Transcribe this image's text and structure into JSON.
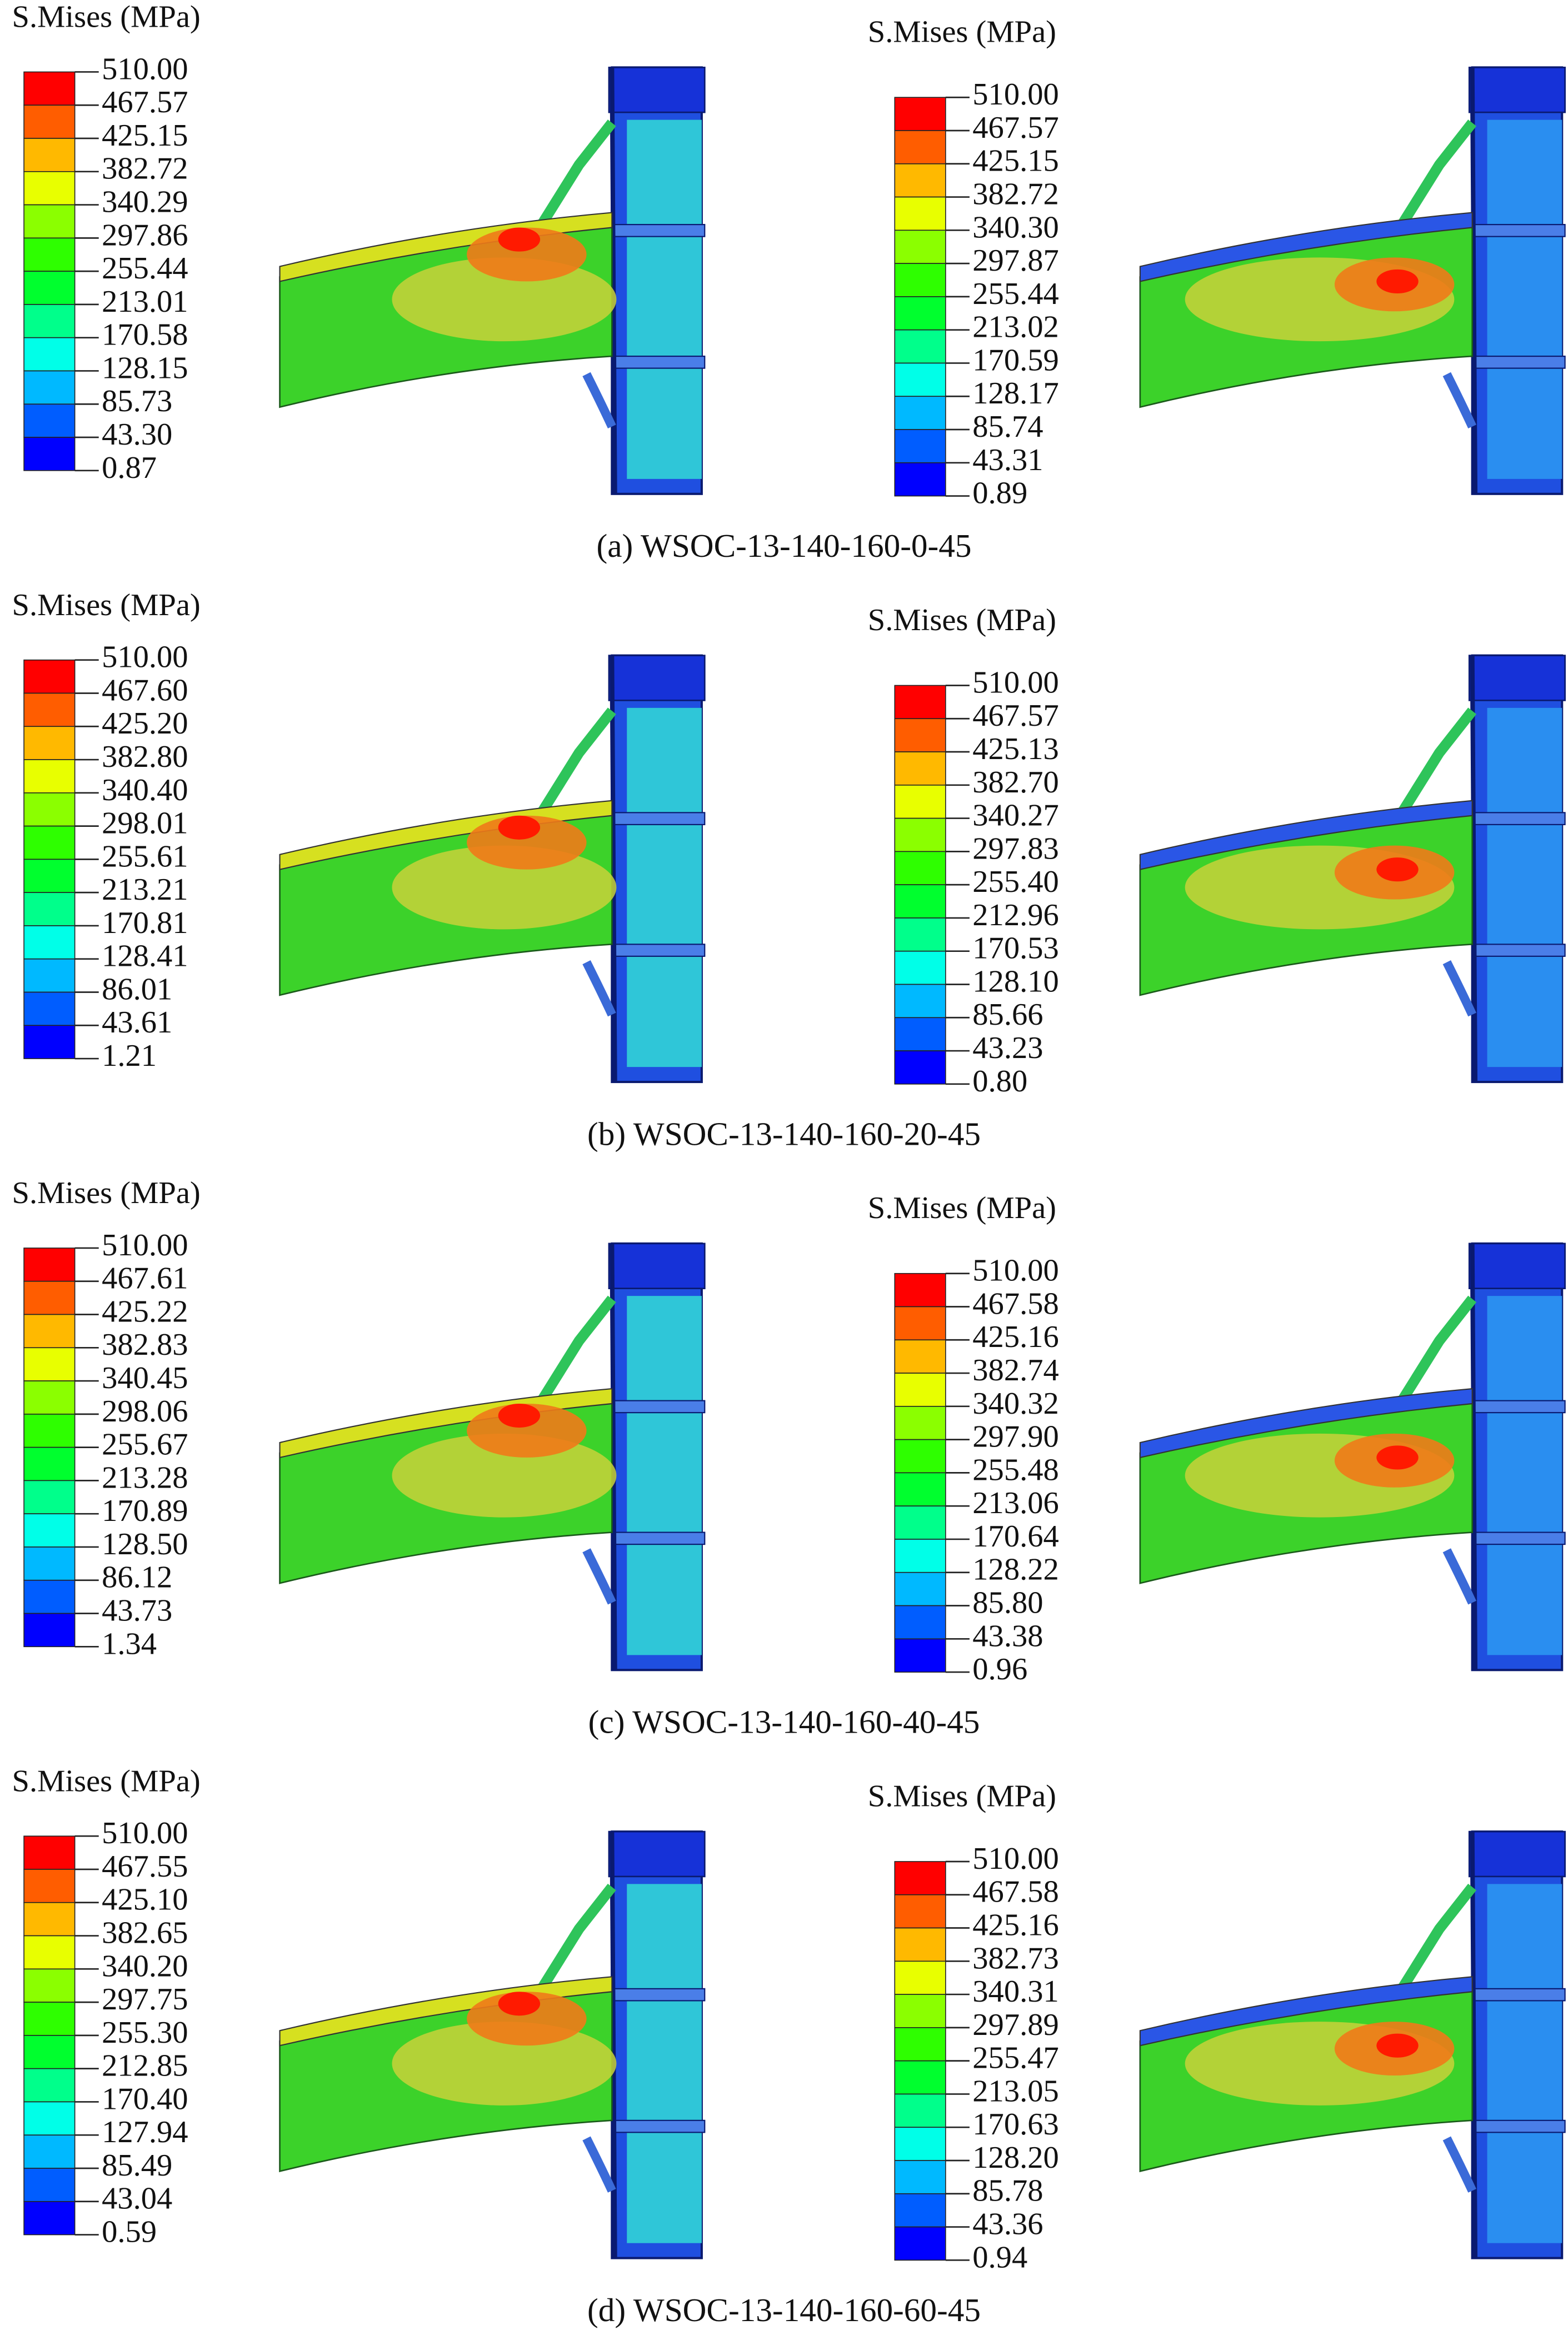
{
  "panels": [
    {
      "caption": "(a) WSOC-13-140-160-0-45",
      "plots": [
        {
          "title": "S.Mises (MPa)",
          "levels": [
            "510.00",
            "467.57",
            "425.15",
            "382.72",
            "340.29",
            "297.86",
            "255.44",
            "213.01",
            "170.58",
            "128.15",
            "85.73",
            "43.30",
            "0.87"
          ]
        },
        {
          "title": "S.Mises (MPa)",
          "levels": [
            "510.00",
            "467.57",
            "425.15",
            "382.72",
            "340.30",
            "297.87",
            "255.44",
            "213.02",
            "170.59",
            "128.17",
            "85.74",
            "43.31",
            "0.89"
          ]
        }
      ]
    },
    {
      "caption": "(b) WSOC-13-140-160-20-45",
      "plots": [
        {
          "title": "S.Mises (MPa)",
          "levels": [
            "510.00",
            "467.60",
            "425.20",
            "382.80",
            "340.40",
            "298.01",
            "255.61",
            "213.21",
            "170.81",
            "128.41",
            "86.01",
            "43.61",
            "1.21"
          ]
        },
        {
          "title": "S.Mises (MPa)",
          "levels": [
            "510.00",
            "467.57",
            "425.13",
            "382.70",
            "340.27",
            "297.83",
            "255.40",
            "212.96",
            "170.53",
            "128.10",
            "85.66",
            "43.23",
            "0.80"
          ]
        }
      ]
    },
    {
      "caption": "(c) WSOC-13-140-160-40-45",
      "plots": [
        {
          "title": "S.Mises (MPa)",
          "levels": [
            "510.00",
            "467.61",
            "425.22",
            "382.83",
            "340.45",
            "298.06",
            "255.67",
            "213.28",
            "170.89",
            "128.50",
            "86.12",
            "43.73",
            "1.34"
          ]
        },
        {
          "title": "S.Mises (MPa)",
          "levels": [
            "510.00",
            "467.58",
            "425.16",
            "382.74",
            "340.32",
            "297.90",
            "255.48",
            "213.06",
            "170.64",
            "128.22",
            "85.80",
            "43.38",
            "0.96"
          ]
        }
      ]
    },
    {
      "caption": "(d) WSOC-13-140-160-60-45",
      "plots": [
        {
          "title": "S.Mises (MPa)",
          "levels": [
            "510.00",
            "467.55",
            "425.10",
            "382.65",
            "340.20",
            "297.75",
            "255.30",
            "212.85",
            "170.40",
            "127.94",
            "85.49",
            "43.04",
            "0.59"
          ]
        },
        {
          "title": "S.Mises (MPa)",
          "levels": [
            "510.00",
            "467.58",
            "425.16",
            "382.73",
            "340.31",
            "297.89",
            "255.47",
            "213.05",
            "170.63",
            "128.20",
            "85.78",
            "43.36",
            "0.94"
          ]
        }
      ]
    }
  ]
}
